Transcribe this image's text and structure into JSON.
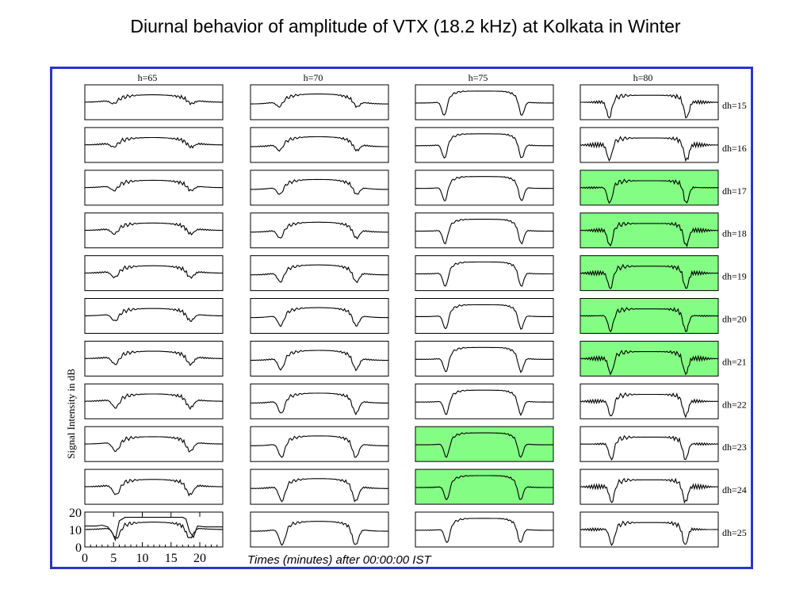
{
  "title": "Diurnal behavior of amplitude of  VTX (18.2 kHz) at Kolkata in Winter",
  "chart_data": {
    "type": "line",
    "layout": "small-multiples grid",
    "column_labels": [
      "h=65",
      "h=70",
      "h=75",
      "h=80"
    ],
    "row_labels": [
      "dh=15",
      "dh=16",
      "dh=17",
      "dh=18",
      "dh=19",
      "dh=20",
      "dh=21",
      "dh=22",
      "dh=23",
      "dh=24",
      "dh=25"
    ],
    "ylabel": "Signal Intensity in dB",
    "xlabel": "Times (minutes) after 00:00:00 IST",
    "x_ticks": [
      0,
      5,
      10,
      15,
      20
    ],
    "y_ticks": [
      0,
      10,
      20
    ],
    "xlim": [
      0,
      24
    ],
    "ylim": [
      0,
      20
    ],
    "grid": false,
    "highlight_color": "#84fd84",
    "highlighted_panels": [
      {
        "col": "h=80",
        "row": "dh=17"
      },
      {
        "col": "h=80",
        "row": "dh=18"
      },
      {
        "col": "h=80",
        "row": "dh=19"
      },
      {
        "col": "h=80",
        "row": "dh=20"
      },
      {
        "col": "h=80",
        "row": "dh=21"
      },
      {
        "col": "h=75",
        "row": "dh=23"
      },
      {
        "col": "h=75",
        "row": "dh=24"
      }
    ],
    "sample_curve_h65_dh25": {
      "x": [
        0,
        2,
        3,
        4,
        4.8,
        5.3,
        6,
        7,
        9,
        12,
        15,
        17,
        17.6,
        18.2,
        18.9,
        19.6,
        21,
        24
      ],
      "y": [
        12,
        12,
        12.5,
        11.5,
        8,
        4,
        15,
        17,
        17,
        17,
        17,
        17,
        16,
        9,
        5.5,
        12,
        11.5,
        11.5
      ]
    }
  },
  "colors": {
    "frame": "#2a35c8",
    "highlight": "#84fd84",
    "curve": "#000000"
  }
}
